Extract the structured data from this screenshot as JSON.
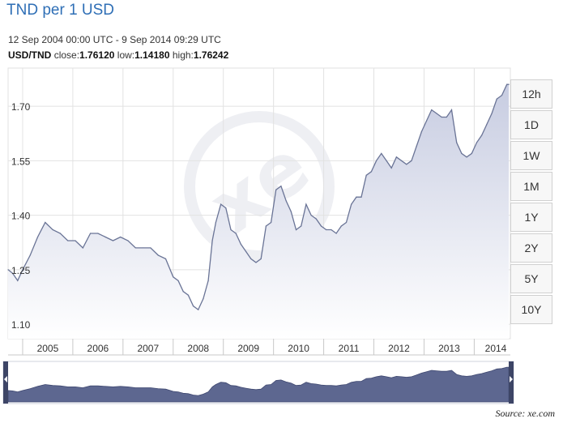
{
  "header": {
    "title": "TND per 1 USD",
    "date_range": "12 Sep 2004 00:00 UTC - 9 Sep 2014 09:29 UTC",
    "pair": "USD/TND",
    "close_label": "close:",
    "close_value": "1.76120",
    "low_label": "low:",
    "low_value": "1.14180",
    "high_label": "high:",
    "high_value": "1.76242"
  },
  "range_buttons": [
    "12h",
    "1D",
    "1W",
    "1M",
    "1Y",
    "2Y",
    "5Y",
    "10Y"
  ],
  "source": "Source:  xe.com",
  "colors": {
    "title": "#2f6fb6",
    "line": "#6a7496",
    "fill_top": "#cdd1e4",
    "fill_bottom": "#ffffff",
    "navigator_fill": "#5d6790",
    "grid": "#e2e2e2"
  },
  "chart_data": {
    "type": "area",
    "title": "TND per 1 USD",
    "xlabel": "",
    "ylabel": "",
    "x_ticks": [
      "2005",
      "2006",
      "2007",
      "2008",
      "2009",
      "2010",
      "2011",
      "2012",
      "2013",
      "2014"
    ],
    "y_ticks": [
      "1.70",
      "1.55",
      "1.40",
      "1.25",
      "1.10"
    ],
    "ylim": [
      1.1,
      1.77
    ],
    "grid": true,
    "series": [
      {
        "values_x": [
          2004.71,
          2004.8,
          2004.9,
          2005.0,
          2005.15,
          2005.3,
          2005.45,
          2005.6,
          2005.75,
          2005.9,
          2006.05,
          2006.2,
          2006.35,
          2006.5,
          2006.65,
          2006.8,
          2006.95,
          2007.1,
          2007.25,
          2007.4,
          2007.55,
          2007.7,
          2007.85,
          2008.0,
          2008.1,
          2008.2,
          2008.3,
          2008.4,
          2008.5,
          2008.6,
          2008.7,
          2008.78,
          2008.85,
          2008.95,
          2009.05,
          2009.15,
          2009.25,
          2009.35,
          2009.45,
          2009.55,
          2009.65,
          2009.75,
          2009.85,
          2009.95,
          2010.05,
          2010.15,
          2010.25,
          2010.35,
          2010.45,
          2010.55,
          2010.65,
          2010.75,
          2010.85,
          2010.95,
          2011.05,
          2011.15,
          2011.25,
          2011.35,
          2011.45,
          2011.55,
          2011.65,
          2011.75,
          2011.85,
          2011.95,
          2012.05,
          2012.15,
          2012.25,
          2012.35,
          2012.45,
          2012.55,
          2012.65,
          2012.75,
          2012.85,
          2012.95,
          2013.05,
          2013.15,
          2013.25,
          2013.35,
          2013.45,
          2013.55,
          2013.65,
          2013.75,
          2013.85,
          2013.95,
          2014.05,
          2014.15,
          2014.25,
          2014.35,
          2014.45,
          2014.55,
          2014.65,
          2014.69
        ],
        "values": [
          1.25,
          1.24,
          1.22,
          1.25,
          1.29,
          1.34,
          1.38,
          1.36,
          1.35,
          1.33,
          1.33,
          1.31,
          1.35,
          1.35,
          1.34,
          1.33,
          1.34,
          1.33,
          1.31,
          1.31,
          1.31,
          1.29,
          1.28,
          1.23,
          1.22,
          1.19,
          1.18,
          1.15,
          1.14,
          1.17,
          1.22,
          1.33,
          1.38,
          1.43,
          1.42,
          1.36,
          1.35,
          1.32,
          1.3,
          1.28,
          1.27,
          1.28,
          1.37,
          1.38,
          1.47,
          1.48,
          1.44,
          1.41,
          1.36,
          1.37,
          1.43,
          1.4,
          1.39,
          1.37,
          1.36,
          1.36,
          1.35,
          1.37,
          1.38,
          1.43,
          1.45,
          1.45,
          1.51,
          1.52,
          1.55,
          1.57,
          1.55,
          1.53,
          1.56,
          1.55,
          1.54,
          1.55,
          1.59,
          1.63,
          1.66,
          1.69,
          1.68,
          1.67,
          1.67,
          1.69,
          1.6,
          1.57,
          1.56,
          1.57,
          1.6,
          1.62,
          1.65,
          1.68,
          1.72,
          1.73,
          1.76,
          1.76
        ]
      }
    ]
  }
}
